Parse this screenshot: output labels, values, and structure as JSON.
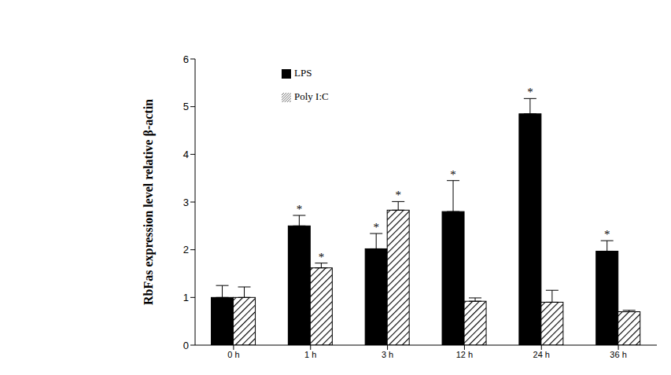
{
  "chart_data": {
    "type": "bar",
    "categories": [
      "0 h",
      "1 h",
      "3 h",
      "12 h",
      "24 h",
      "36 h"
    ],
    "y_label": "RbFas expression level relative β-actin",
    "ylim": [
      0,
      6
    ],
    "yticks": [
      0,
      1,
      2,
      3,
      4,
      5,
      6
    ],
    "grid": false,
    "legend": "top",
    "series": [
      {
        "name": "LPS",
        "color": "#000000",
        "values": [
          1.0,
          2.5,
          2.02,
          2.8,
          4.85,
          1.97
        ],
        "errors": [
          0.25,
          0.22,
          0.32,
          0.65,
          0.32,
          0.22
        ],
        "annotations": [
          null,
          "*",
          "*",
          "*",
          "*",
          "*"
        ]
      },
      {
        "name": "Poly I:C",
        "color": "#000000",
        "values": [
          1.0,
          1.62,
          2.83,
          0.92,
          0.9,
          0.7
        ],
        "errors": [
          0.22,
          0.1,
          0.18,
          0.07,
          0.25,
          0.03
        ],
        "annotations": [
          null,
          "*",
          "*",
          null,
          null,
          null
        ]
      }
    ]
  }
}
